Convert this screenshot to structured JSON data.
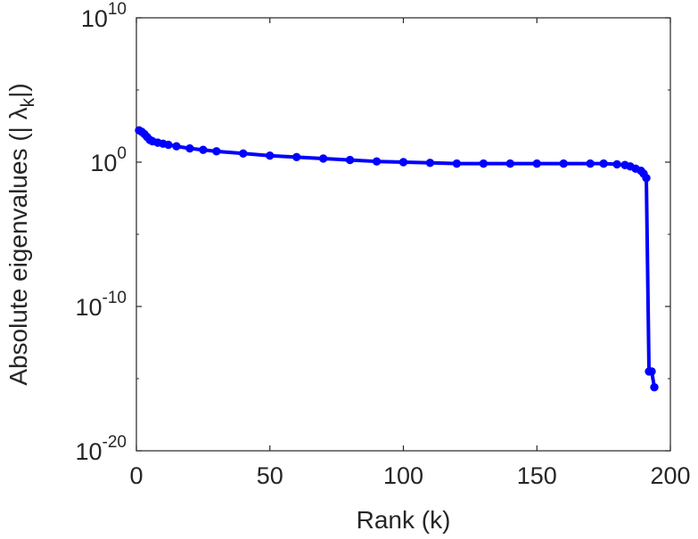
{
  "chart_data": {
    "type": "line",
    "title": "",
    "xlabel": "Rank (k)",
    "ylabel": {
      "prefix": "Absolute eigenvalues (|",
      "symbol": "λ",
      "subscript": "k",
      "suffix": "|)"
    },
    "xlim": [
      0,
      200
    ],
    "ylim_log10": [
      -20,
      10
    ],
    "yscale": "log",
    "grid": false,
    "legend": "none",
    "x_ticks": [
      "0",
      "50",
      "100",
      "150",
      "200"
    ],
    "y_ticks": [
      {
        "base": "10",
        "exp": "10"
      },
      {
        "base": "10",
        "exp": "0"
      },
      {
        "base": "10",
        "exp": "-10"
      },
      {
        "base": "10",
        "exp": "-20"
      }
    ],
    "series": [
      {
        "color": "#0000ff",
        "marker": "circle",
        "x": [
          1,
          2,
          3,
          4,
          5,
          6,
          8,
          10,
          12,
          15,
          20,
          25,
          30,
          40,
          50,
          60,
          70,
          80,
          90,
          100,
          110,
          120,
          130,
          140,
          150,
          160,
          170,
          175,
          180,
          183,
          185,
          187,
          189,
          190,
          191,
          192,
          193,
          194
        ],
        "y_log10": [
          2.2,
          2.1,
          1.95,
          1.75,
          1.55,
          1.45,
          1.35,
          1.28,
          1.2,
          1.1,
          0.95,
          0.85,
          0.75,
          0.6,
          0.45,
          0.35,
          0.25,
          0.15,
          0.05,
          0.0,
          -0.05,
          -0.1,
          -0.1,
          -0.1,
          -0.1,
          -0.1,
          -0.1,
          -0.1,
          -0.15,
          -0.2,
          -0.3,
          -0.45,
          -0.6,
          -0.8,
          -1.1,
          -14.5,
          -14.5,
          -15.6
        ]
      }
    ]
  }
}
